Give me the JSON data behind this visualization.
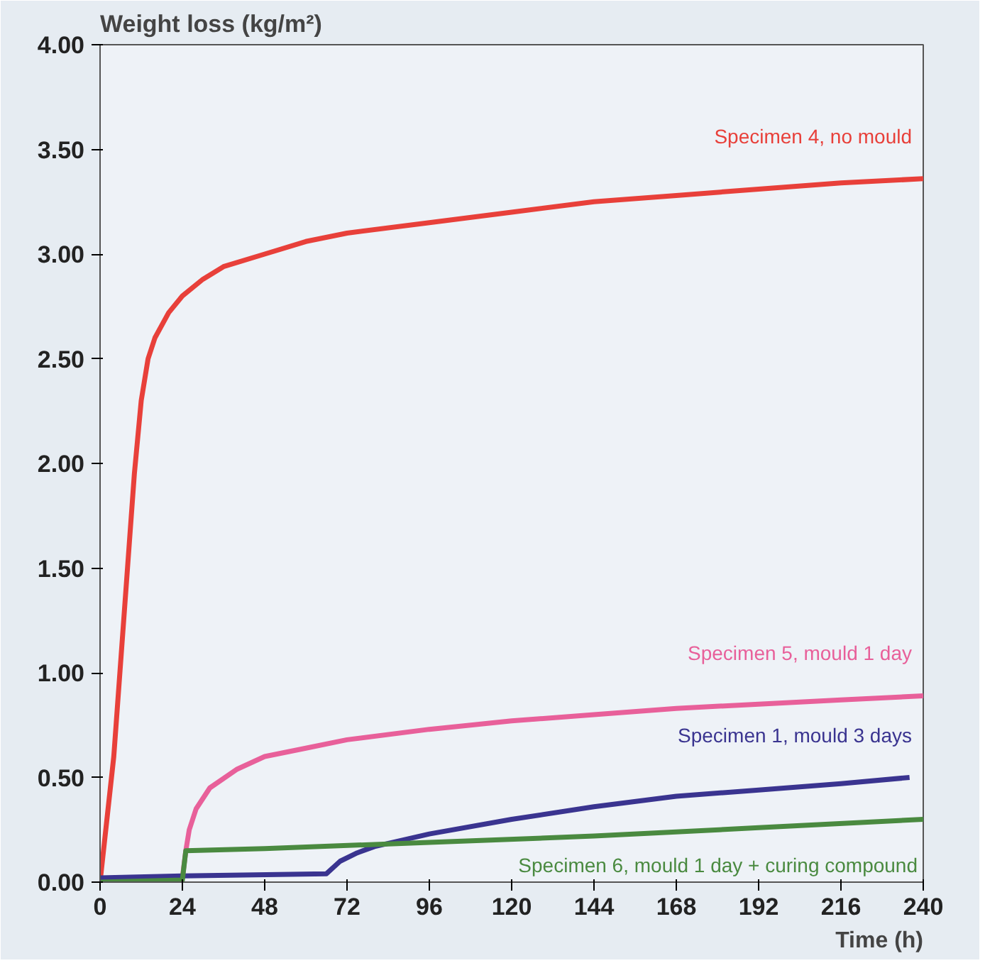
{
  "chart_data": {
    "type": "line",
    "ylabel": "Weight loss (kg/m²)",
    "xlabel": "Time (h)",
    "xlim": [
      0,
      240
    ],
    "ylim": [
      0,
      4
    ],
    "xticks": [
      0,
      24,
      48,
      72,
      96,
      120,
      144,
      168,
      192,
      216,
      240
    ],
    "yticks": [
      {
        "value": 0,
        "label": "0.00"
      },
      {
        "value": 0.5,
        "label": "0.50"
      },
      {
        "value": 1,
        "label": "1.00"
      },
      {
        "value": 1.5,
        "label": "1.50"
      },
      {
        "value": 2,
        "label": "2.00"
      },
      {
        "value": 2.5,
        "label": "2.50"
      },
      {
        "value": 3,
        "label": "3.00"
      },
      {
        "value": 3.5,
        "label": "3.50"
      },
      {
        "value": 4,
        "label": "4.00"
      }
    ],
    "grid": false,
    "marker": "none",
    "line_style": "solid",
    "series": [
      {
        "name": "Specimen 4, no mould",
        "color": "#e8403a",
        "x": [
          0,
          2,
          4,
          6,
          8,
          10,
          12,
          14,
          16,
          20,
          24,
          30,
          36,
          48,
          60,
          72,
          96,
          120,
          144,
          168,
          192,
          216,
          240
        ],
        "values": [
          0,
          0.3,
          0.6,
          1.05,
          1.5,
          1.95,
          2.3,
          2.5,
          2.6,
          2.72,
          2.8,
          2.88,
          2.94,
          3.0,
          3.06,
          3.1,
          3.15,
          3.2,
          3.25,
          3.28,
          3.31,
          3.34,
          3.36
        ]
      },
      {
        "name": "Specimen 5, mould 1 day",
        "color": "#e8609a",
        "x": [
          0,
          24,
          25,
          26,
          28,
          32,
          40,
          48,
          60,
          72,
          96,
          120,
          144,
          168,
          192,
          216,
          240
        ],
        "values": [
          0,
          0.02,
          0.15,
          0.25,
          0.35,
          0.45,
          0.54,
          0.6,
          0.64,
          0.68,
          0.73,
          0.77,
          0.8,
          0.83,
          0.85,
          0.87,
          0.89
        ]
      },
      {
        "name": "Specimen 1, mould 3 days",
        "color": "#3a3490",
        "x": [
          0,
          24,
          66,
          70,
          75,
          80,
          96,
          120,
          144,
          168,
          192,
          216,
          236
        ],
        "values": [
          0.02,
          0.03,
          0.04,
          0.1,
          0.14,
          0.17,
          0.23,
          0.3,
          0.36,
          0.41,
          0.44,
          0.47,
          0.5
        ]
      },
      {
        "name": "Specimen 6, mould 1 day + curing compound",
        "color": "#4a8a40",
        "x": [
          0,
          24,
          25,
          48,
          96,
          144,
          192,
          240
        ],
        "values": [
          0,
          0.01,
          0.15,
          0.16,
          0.19,
          0.22,
          0.26,
          0.3
        ]
      }
    ]
  }
}
